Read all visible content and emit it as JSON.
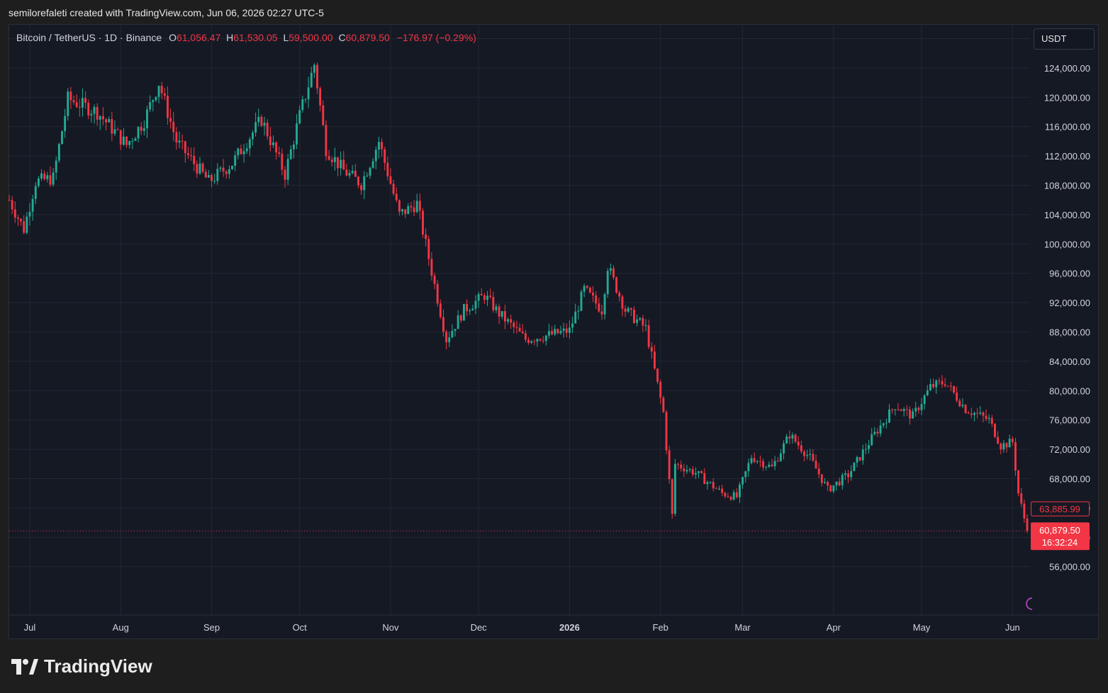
{
  "header": {
    "attribution": "semilorefaleti created with TradingView.com, Jun 06, 2026 02:27 UTC-5"
  },
  "legend": {
    "symbol": "Bitcoin / TetherUS · 1D · Binance",
    "o_label": "O",
    "o": "61,056.47",
    "h_label": "H",
    "h": "61,530.05",
    "l_label": "L",
    "l": "59,500.00",
    "c_label": "C",
    "c": "60,879.50",
    "change": "−176.97 (−0.29%)"
  },
  "currency": "USDT",
  "brand": {
    "name": "TradingView"
  },
  "colors": {
    "up": "#22ab94",
    "down": "#f23645",
    "background": "#151924",
    "grid": "#232733",
    "text": "#d1d4dc"
  },
  "chart_data": {
    "type": "candlestick",
    "y_axis": {
      "min": 53000,
      "max": 130000,
      "ticks": [
        56000,
        60000,
        64000,
        68000,
        72000,
        76000,
        80000,
        84000,
        88000,
        92000,
        96000,
        100000,
        104000,
        108000,
        112000,
        116000,
        120000,
        124000,
        128000
      ],
      "tick_labels": [
        "56,000.00",
        "60,000.00",
        "64,000.00",
        "68,000.00",
        "72,000.00",
        "76,000.00",
        "80,000.00",
        "84,000.00",
        "88,000.00",
        "92,000.00",
        "96,000.00",
        "100,000.00",
        "104,000.00",
        "108,000.00",
        "112,000.00",
        "116,000.00",
        "120,000.00",
        "124,000.00",
        "128,000.00"
      ]
    },
    "x_axis": {
      "start": "2025-06-24",
      "end": "2026-06-06",
      "ticks": [
        {
          "date": "2025-07-01",
          "label": "Jul"
        },
        {
          "date": "2025-08-01",
          "label": "Aug"
        },
        {
          "date": "2025-09-01",
          "label": "Sep"
        },
        {
          "date": "2025-10-01",
          "label": "Oct"
        },
        {
          "date": "2025-11-01",
          "label": "Nov"
        },
        {
          "date": "2025-12-01",
          "label": "Dec"
        },
        {
          "date": "2026-01-01",
          "label": "2026",
          "bold": true
        },
        {
          "date": "2026-02-01",
          "label": "Feb"
        },
        {
          "date": "2026-03-01",
          "label": "Mar"
        },
        {
          "date": "2026-04-01",
          "label": "Apr"
        },
        {
          "date": "2026-05-01",
          "label": "May"
        },
        {
          "date": "2026-06-01",
          "label": "Jun"
        }
      ]
    },
    "anchors": [
      [
        "2025-06-24",
        106000
      ],
      [
        "2025-06-29",
        102000
      ],
      [
        "2025-07-03",
        108500
      ],
      [
        "2025-07-09",
        109000
      ],
      [
        "2025-07-14",
        119800
      ],
      [
        "2025-07-24",
        118000
      ],
      [
        "2025-08-03",
        113500
      ],
      [
        "2025-08-09",
        116800
      ],
      [
        "2025-08-14",
        122000
      ],
      [
        "2025-08-20",
        114000
      ],
      [
        "2025-08-31",
        108500
      ],
      [
        "2025-09-08",
        111000
      ],
      [
        "2025-09-18",
        117000
      ],
      [
        "2025-09-26",
        109500
      ],
      [
        "2025-10-01",
        117500
      ],
      [
        "2025-10-06",
        124500
      ],
      [
        "2025-10-10",
        113000
      ],
      [
        "2025-10-16",
        110000
      ],
      [
        "2025-10-22",
        108200
      ],
      [
        "2025-10-28",
        114000
      ],
      [
        "2025-11-04",
        104000
      ],
      [
        "2025-11-10",
        105500
      ],
      [
        "2025-11-20",
        87000
      ],
      [
        "2025-11-26",
        91000
      ],
      [
        "2025-12-03",
        93000
      ],
      [
        "2025-12-08",
        90500
      ],
      [
        "2025-12-17",
        87000
      ],
      [
        "2025-12-24",
        87500
      ],
      [
        "2026-01-01",
        88200
      ],
      [
        "2026-01-06",
        93800
      ],
      [
        "2026-01-12",
        91000
      ],
      [
        "2026-01-14",
        97000
      ],
      [
        "2026-01-20",
        91000
      ],
      [
        "2026-01-27",
        88500
      ],
      [
        "2026-02-02",
        77000
      ],
      [
        "2026-02-05",
        63000
      ],
      [
        "2026-02-06",
        70000
      ],
      [
        "2026-02-13",
        68800
      ],
      [
        "2026-02-22",
        66000
      ],
      [
        "2026-02-27",
        65500
      ],
      [
        "2026-03-04",
        71000
      ],
      [
        "2026-03-11",
        69500
      ],
      [
        "2026-03-17",
        74000
      ],
      [
        "2026-03-24",
        70800
      ],
      [
        "2026-03-30",
        66500
      ],
      [
        "2026-04-06",
        68500
      ],
      [
        "2026-04-14",
        73500
      ],
      [
        "2026-04-22",
        78000
      ],
      [
        "2026-04-28",
        76500
      ],
      [
        "2026-05-04",
        80500
      ],
      [
        "2026-05-09",
        81200
      ],
      [
        "2026-05-16",
        77500
      ],
      [
        "2026-05-24",
        76000
      ],
      [
        "2026-05-28",
        72500
      ],
      [
        "2026-06-01",
        73000
      ],
      [
        "2026-06-03",
        66000
      ],
      [
        "2026-06-06",
        60879.5
      ]
    ],
    "price_line": {
      "value": 60879.5,
      "label": "60,879.50",
      "countdown": "16:32:24"
    },
    "marker": {
      "value": 63885.99,
      "label": "63,885.99"
    }
  }
}
